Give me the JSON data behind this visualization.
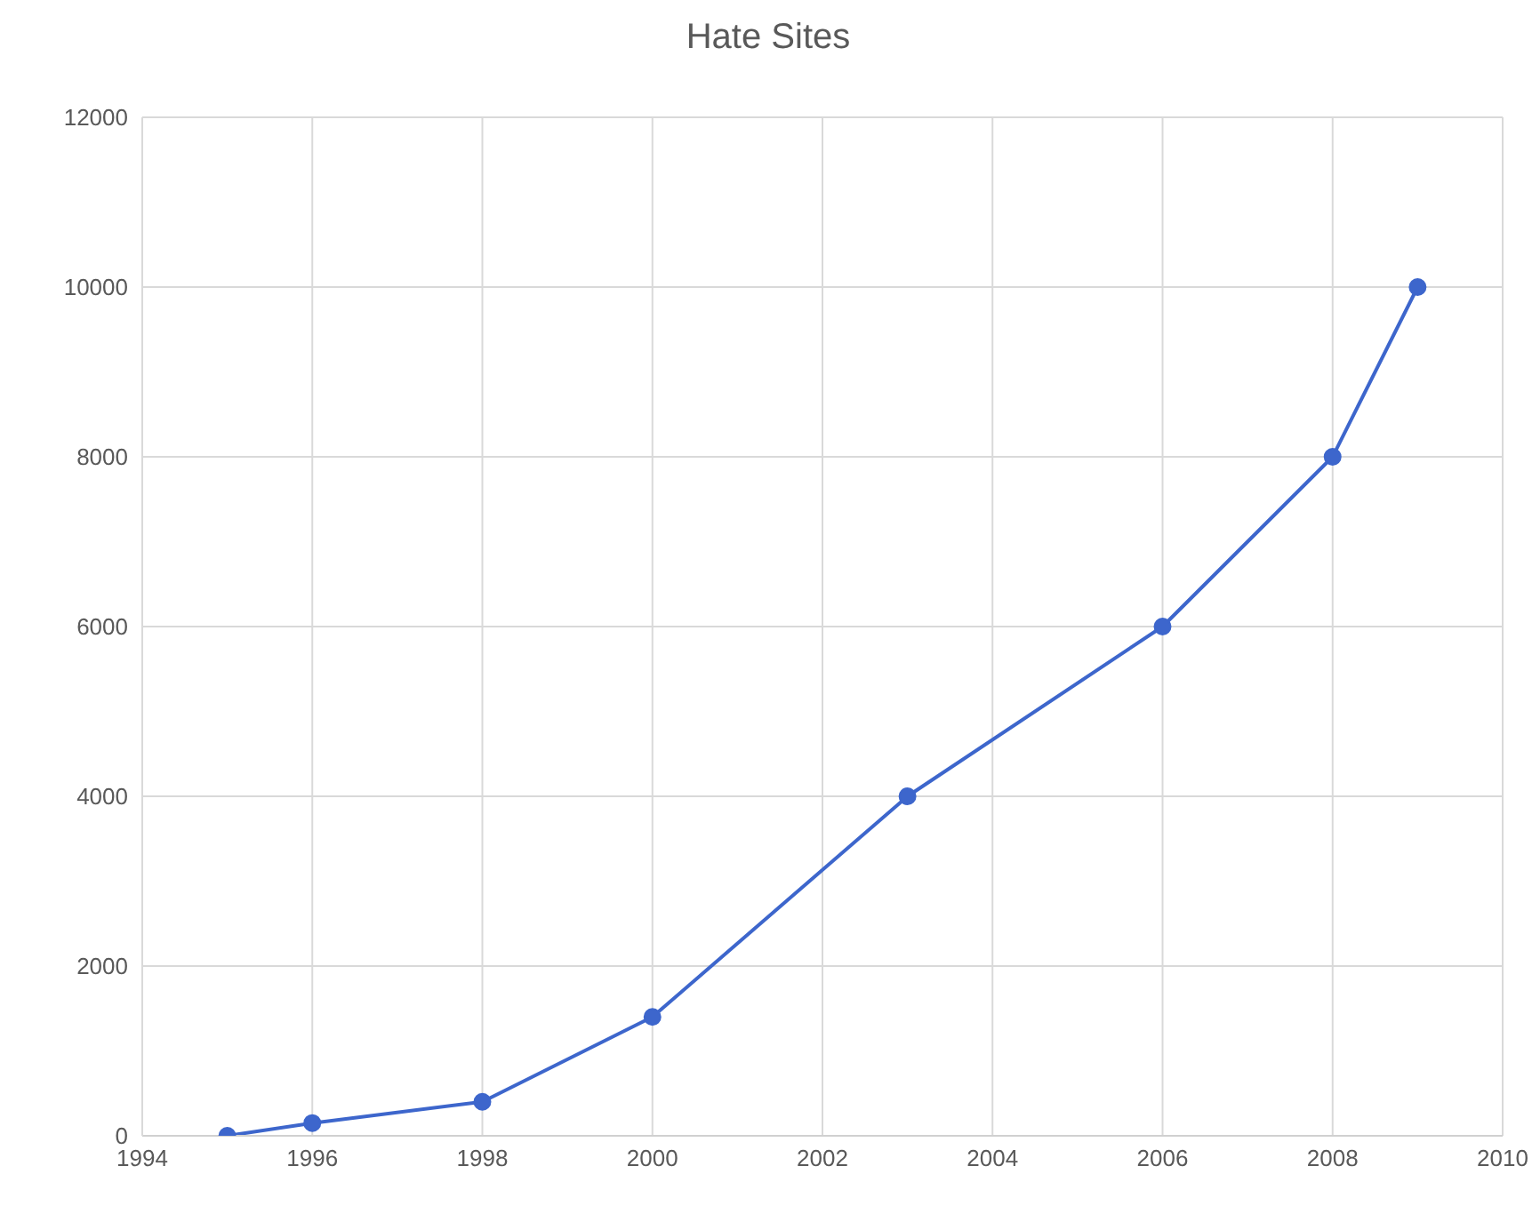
{
  "chart_data": {
    "type": "line",
    "title": "Hate Sites",
    "x": [
      1995,
      1996,
      1998,
      2000,
      2003,
      2006,
      2008,
      2009
    ],
    "values": [
      0,
      150,
      400,
      1400,
      4000,
      6000,
      8000,
      10000
    ],
    "color": "#3d66cc",
    "xlim": [
      1994,
      2010
    ],
    "xticks": [
      1994,
      1996,
      1998,
      2000,
      2002,
      2004,
      2006,
      2008,
      2010
    ],
    "ylim": [
      0,
      12000
    ],
    "yticks": [
      0,
      2000,
      4000,
      6000,
      8000,
      10000,
      12000
    ],
    "grid": true,
    "marker": "circle",
    "line_style": "solid"
  }
}
